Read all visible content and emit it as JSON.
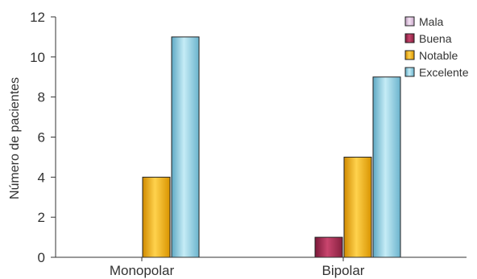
{
  "chart_data": {
    "type": "bar",
    "title": "",
    "xlabel": "",
    "ylabel": "Número de pacientes",
    "ylim": [
      0,
      12
    ],
    "yticks": [
      0,
      2,
      4,
      6,
      8,
      10,
      12
    ],
    "grid": false,
    "legend_position": "top-right",
    "categories": [
      "Monopolar",
      "Bipolar"
    ],
    "series": [
      {
        "name": "Mala",
        "color": "#e6c8e6",
        "values": [
          0,
          0
        ]
      },
      {
        "name": "Buena",
        "color": "#a3274f",
        "values": [
          0,
          1
        ]
      },
      {
        "name": "Notable",
        "color": "#f2b400",
        "values": [
          4,
          5
        ]
      },
      {
        "name": "Excelente",
        "color": "#86cbe0",
        "values": [
          11,
          9
        ]
      }
    ]
  }
}
